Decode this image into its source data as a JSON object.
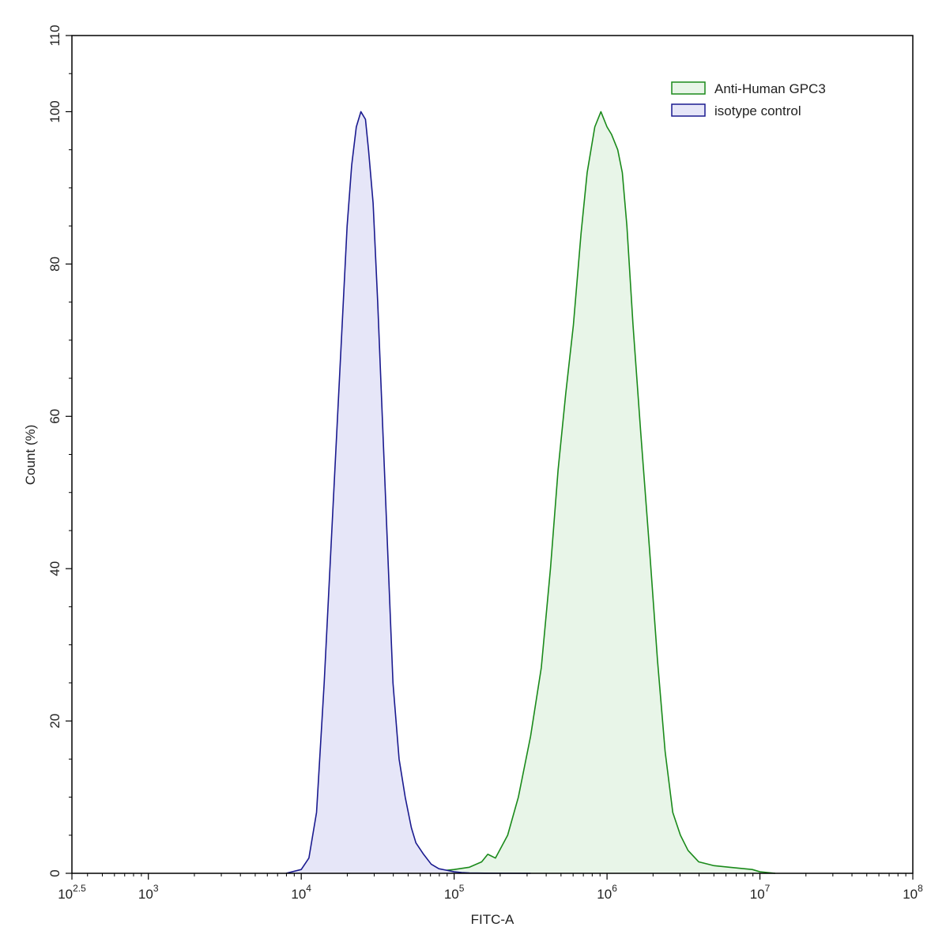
{
  "chart_data": {
    "type": "area",
    "title": "",
    "xlabel": "FITC-A",
    "ylabel": "Count  (%)",
    "xscale": "log10",
    "xlim": [
      2.5,
      8
    ],
    "ylim": [
      0,
      110
    ],
    "x_ticks": [
      {
        "exp": 2.5,
        "base": "10",
        "sup": "2.5"
      },
      {
        "exp": 3,
        "base": "10",
        "sup": "3"
      },
      {
        "exp": 4,
        "base": "10",
        "sup": "4"
      },
      {
        "exp": 5,
        "base": "10",
        "sup": "5"
      },
      {
        "exp": 6,
        "base": "10",
        "sup": "6"
      },
      {
        "exp": 7,
        "base": "10",
        "sup": "7"
      },
      {
        "exp": 8,
        "base": "10",
        "sup": "8"
      }
    ],
    "y_ticks": [
      "0",
      "20",
      "40",
      "60",
      "80",
      "100",
      "110"
    ],
    "legend_position": "top-right",
    "grid": false,
    "series": [
      {
        "name": "Anti-Human GPC3",
        "stroke": "#1a8a1a",
        "fill": "#e8f5e8",
        "x": [
          "10^4.3",
          "10^4.6",
          "10^4.9",
          "10^5.0",
          "10^5.1",
          "10^5.18",
          "10^5.22",
          "10^5.27",
          "10^5.35",
          "10^5.42",
          "10^5.5",
          "10^5.57",
          "10^5.63",
          "10^5.68",
          "10^5.73",
          "10^5.78",
          "10^5.83",
          "10^5.87",
          "10^5.92",
          "10^5.96",
          "10^6.0",
          "10^6.03",
          "10^6.07",
          "10^6.1",
          "10^6.13",
          "10^6.17",
          "10^6.22",
          "10^6.28",
          "10^6.33",
          "10^6.38",
          "10^6.43",
          "10^6.48",
          "10^6.53",
          "10^6.6",
          "10^6.7",
          "10^6.8",
          "10^6.95",
          "10^7.0",
          "10^7.1"
        ],
        "y": [
          0,
          0.3,
          0.3,
          0.5,
          0.8,
          1.5,
          2.5,
          2.0,
          5,
          10,
          18,
          27,
          40,
          53,
          63,
          72,
          84,
          92,
          98,
          100,
          98,
          97,
          95,
          92,
          85,
          72,
          58,
          42,
          28,
          16,
          8,
          5,
          3,
          1.5,
          1.0,
          0.8,
          0.5,
          0.2,
          0
        ],
        "x_exp": [
          4.3,
          4.6,
          4.9,
          5.0,
          5.1,
          5.18,
          5.22,
          5.27,
          5.35,
          5.42,
          5.5,
          5.57,
          5.63,
          5.68,
          5.73,
          5.78,
          5.83,
          5.87,
          5.92,
          5.96,
          6.0,
          6.03,
          6.07,
          6.1,
          6.13,
          6.17,
          6.22,
          6.28,
          6.33,
          6.38,
          6.43,
          6.48,
          6.53,
          6.6,
          6.7,
          6.8,
          6.95,
          7.0,
          7.1
        ]
      },
      {
        "name": "isotype control",
        "stroke": "#1a1a8f",
        "fill": "#e6e6f8",
        "x_exp": [
          3.9,
          4.0,
          4.05,
          4.1,
          4.15,
          4.2,
          4.25,
          4.3,
          4.33,
          4.36,
          4.39,
          4.42,
          4.44,
          4.47,
          4.5,
          4.53,
          4.57,
          4.6,
          4.64,
          4.68,
          4.72,
          4.75,
          4.8,
          4.85,
          4.9,
          4.95,
          5.0,
          5.05,
          5.1,
          5.2,
          5.5
        ],
        "y": [
          0,
          0.5,
          2,
          8,
          25,
          45,
          65,
          85,
          93,
          98,
          100,
          99,
          95,
          88,
          75,
          60,
          40,
          25,
          15,
          10,
          6,
          4,
          2.5,
          1.2,
          0.6,
          0.4,
          0.2,
          0.1,
          0.05,
          0.02,
          0
        ]
      }
    ]
  }
}
